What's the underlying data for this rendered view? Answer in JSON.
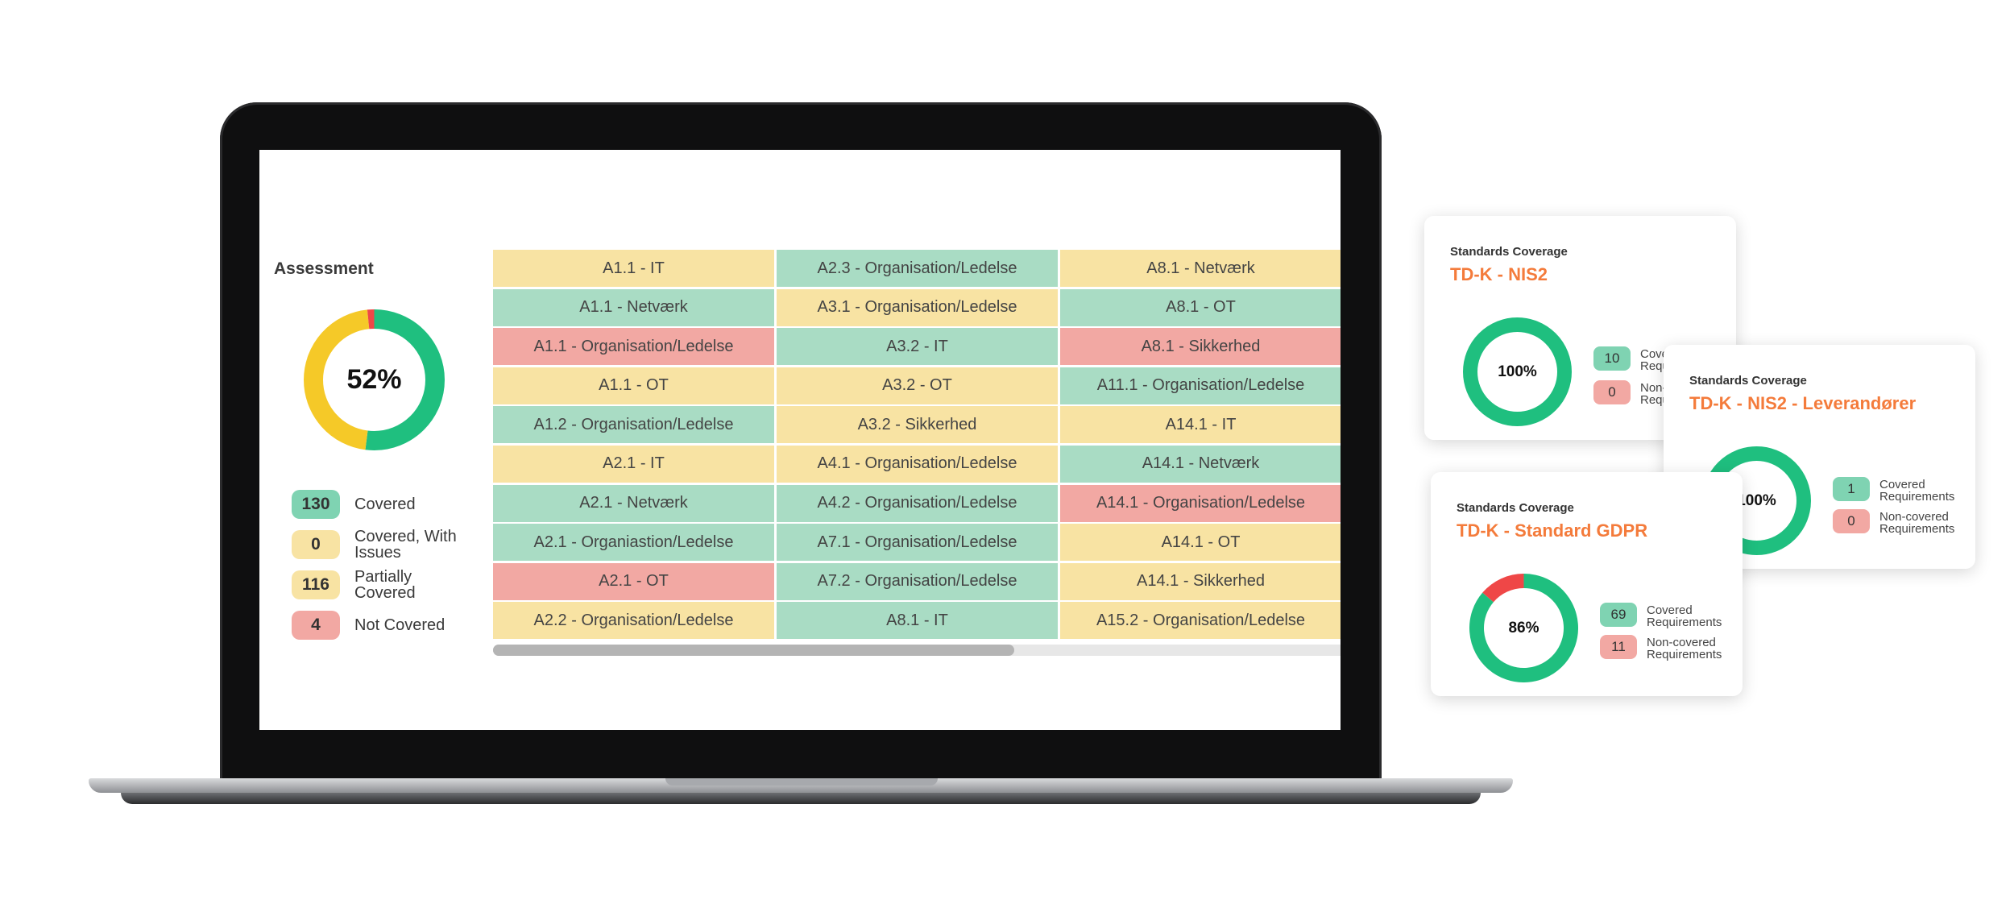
{
  "colors": {
    "green": "#a9dcc4",
    "yellow": "#f8e3a3",
    "red": "#f2a8a3",
    "donut_green": "#1fbf7f",
    "donut_yellow": "#f5c928",
    "donut_red": "#ef4747",
    "accent_orange": "#f47b3b"
  },
  "assessment": {
    "title": "Assessment",
    "percent_label": "52%",
    "donut": {
      "covered": 130,
      "covered_with_issues": 0,
      "partially_covered": 116,
      "not_covered": 4
    },
    "legend": [
      {
        "count": "130",
        "label": "Covered",
        "color": "#7fd3b2"
      },
      {
        "count": "0",
        "label": "Covered, With Issues",
        "color": "#f8e3a3"
      },
      {
        "count": "116",
        "label": "Partially Covered",
        "color": "#f8e3a3"
      },
      {
        "count": "4",
        "label": "Not Covered",
        "color": "#f2a8a3"
      }
    ]
  },
  "grid": {
    "rows": [
      [
        {
          "label": "A1.1 - IT",
          "status": "yellow"
        },
        {
          "label": "A2.3 - Organisation/Ledelse",
          "status": "green"
        },
        {
          "label": "A8.1 - Netværk",
          "status": "yellow"
        }
      ],
      [
        {
          "label": "A1.1 - Netværk",
          "status": "green"
        },
        {
          "label": "A3.1 - Organisation/Ledelse",
          "status": "yellow"
        },
        {
          "label": "A8.1 - OT",
          "status": "green"
        }
      ],
      [
        {
          "label": "A1.1 - Organisation/Ledelse",
          "status": "red"
        },
        {
          "label": "A3.2 - IT",
          "status": "green"
        },
        {
          "label": "A8.1 - Sikkerhed",
          "status": "red"
        }
      ],
      [
        {
          "label": "A1.1 - OT",
          "status": "yellow"
        },
        {
          "label": "A3.2 - OT",
          "status": "yellow"
        },
        {
          "label": "A11.1 - Organisation/Ledelse",
          "status": "green"
        }
      ],
      [
        {
          "label": "A1.2 - Organisation/Ledelse",
          "status": "green"
        },
        {
          "label": "A3.2 - Sikkerhed",
          "status": "yellow"
        },
        {
          "label": "A14.1 - IT",
          "status": "yellow"
        }
      ],
      [
        {
          "label": "A2.1 - IT",
          "status": "yellow"
        },
        {
          "label": "A4.1 - Organisation/Ledelse",
          "status": "yellow"
        },
        {
          "label": "A14.1 - Netværk",
          "status": "green"
        }
      ],
      [
        {
          "label": "A2.1 - Netværk",
          "status": "green"
        },
        {
          "label": "A4.2 - Organisation/Ledelse",
          "status": "green"
        },
        {
          "label": "A14.1 - Organisation/Ledelse",
          "status": "red"
        }
      ],
      [
        {
          "label": "A2.1 - Organiastion/Ledelse",
          "status": "green"
        },
        {
          "label": "A7.1 - Organisation/Ledelse",
          "status": "green"
        },
        {
          "label": "A14.1 - OT",
          "status": "yellow"
        }
      ],
      [
        {
          "label": "A2.1 - OT",
          "status": "red"
        },
        {
          "label": "A7.2 - Organisation/Ledelse",
          "status": "green"
        },
        {
          "label": "A14.1 - Sikkerhed",
          "status": "yellow"
        }
      ],
      [
        {
          "label": "A2.2 - Organisation/Ledelse",
          "status": "yellow"
        },
        {
          "label": "A8.1 - IT",
          "status": "green"
        },
        {
          "label": "A15.2 - Organisation/Ledelse",
          "status": "yellow"
        }
      ]
    ],
    "scroll_position": 0.61
  },
  "cards": [
    {
      "label": "Standards Coverage",
      "title": "TD-K - NIS2",
      "percent_label": "100%",
      "covered": 10,
      "non_covered": 0,
      "covered_count": "10",
      "non_covered_count": "0",
      "covered_text": "Covered Requirements",
      "non_covered_text": "Non-covered Requirements"
    },
    {
      "label": "Standards Coverage",
      "title": "TD-K - NIS2 - Leverandører",
      "percent_label": "100%",
      "covered": 1,
      "non_covered": 0,
      "covered_count": "1",
      "non_covered_count": "0",
      "covered_text": "Covered Requirements",
      "non_covered_text": "Non-covered Requirements"
    },
    {
      "label": "Standards Coverage",
      "title": "TD-K - Standard GDPR",
      "percent_label": "86%",
      "covered": 69,
      "non_covered": 11,
      "covered_count": "69",
      "non_covered_count": "11",
      "covered_text": "Covered Requirements",
      "non_covered_text": "Non-covered Requirements"
    }
  ]
}
